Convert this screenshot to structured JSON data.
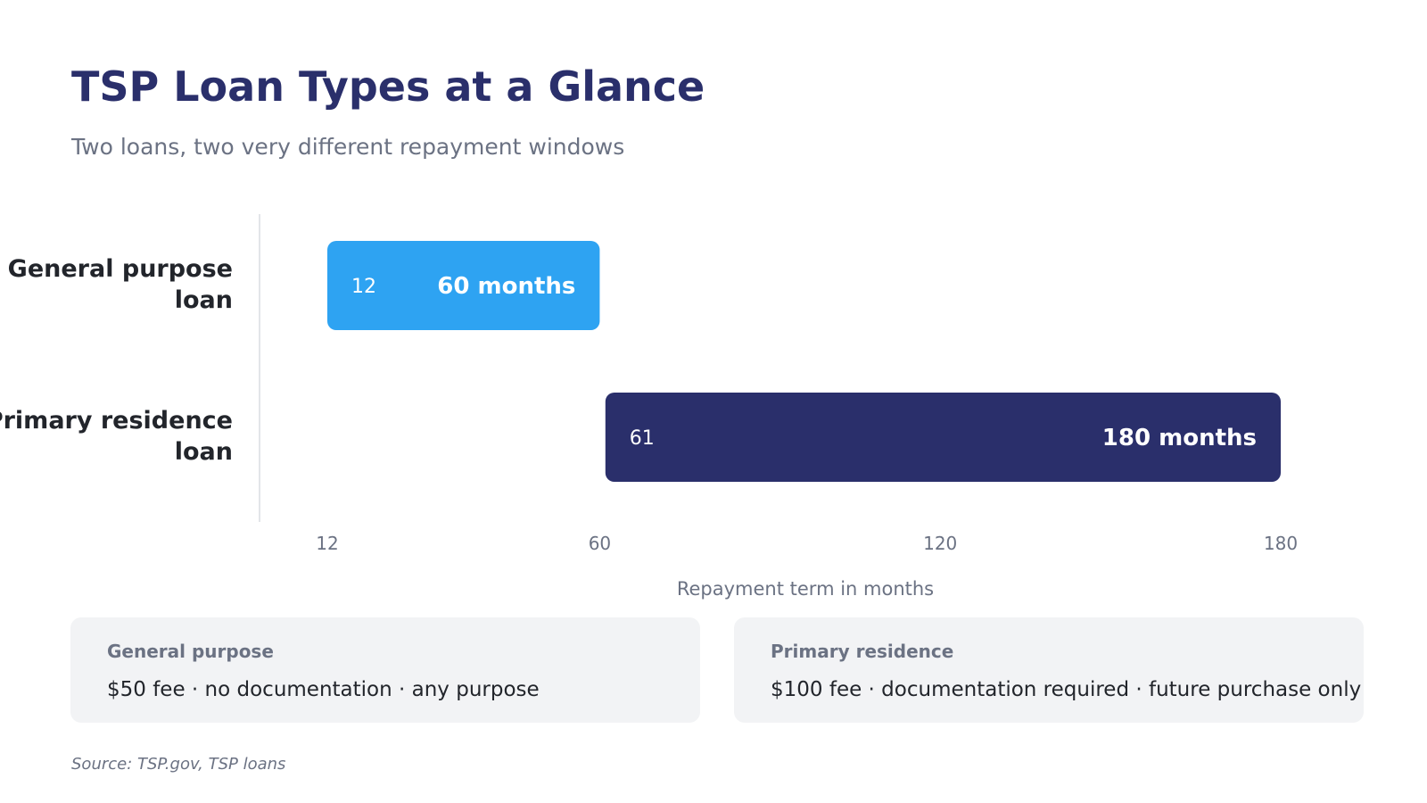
{
  "header": {
    "title": "TSP Loan Types at a Glance",
    "subtitle": "Two loans, two very different repayment windows"
  },
  "chart_data": {
    "type": "bar",
    "orientation": "horizontal",
    "categories": [
      "General purpose loan",
      "Primary residence loan"
    ],
    "series": [
      {
        "values": [
          {
            "category": "General purpose loan",
            "start": 12,
            "end": 60,
            "start_label": "12",
            "end_label": "60 months",
            "color": "#2ea3f2"
          },
          {
            "category": "Primary residence loan",
            "start": 61,
            "end": 180,
            "start_label": "61",
            "end_label": "180 months",
            "color": "#2a2f6b"
          }
        ]
      }
    ],
    "xlabel": "Repayment term in months",
    "x_ticks": [
      12,
      60,
      120,
      180
    ],
    "xlim": [
      12,
      180
    ],
    "grid": false,
    "legend": "none"
  },
  "cards": [
    {
      "heading": "General purpose",
      "detail": "$50 fee  ·  no documentation  ·  any purpose"
    },
    {
      "heading": "Primary residence",
      "detail": "$100 fee  ·  documentation required  ·  future purchase only"
    }
  ],
  "footer": {
    "source": "Source: TSP.gov, TSP loans"
  },
  "colors": {
    "title": "#2a2f6b",
    "muted": "#6b7283",
    "category_label": "#22252b",
    "axis_line": "#e3e5e9",
    "card_bg": "#f2f3f5"
  }
}
